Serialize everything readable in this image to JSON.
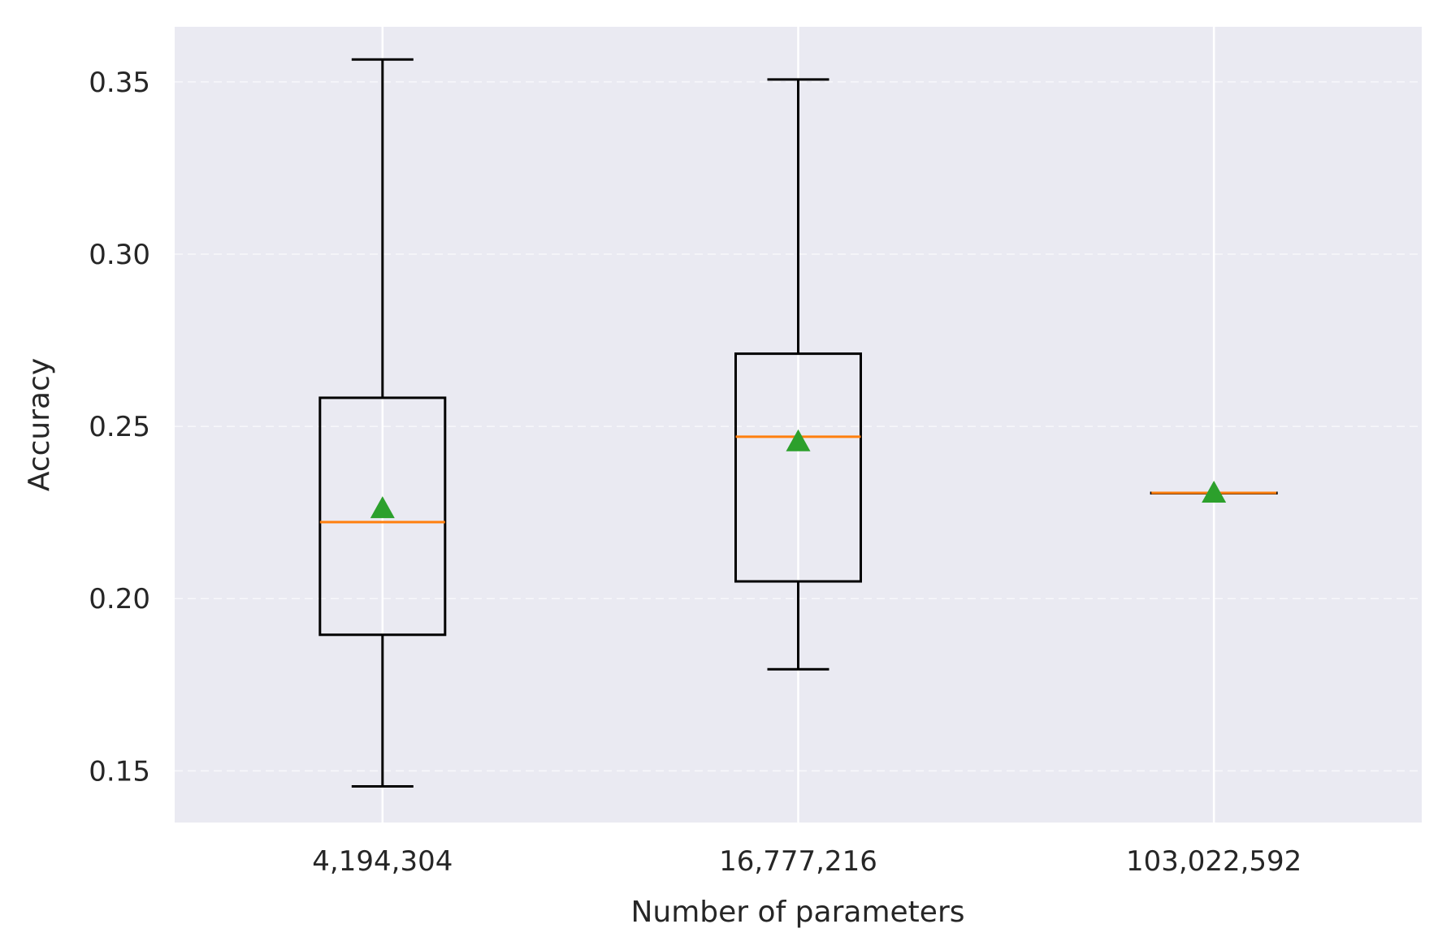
{
  "chart_data": {
    "type": "boxplot",
    "xlabel": "Number of parameters",
    "ylabel": "Accuracy",
    "ylim": [
      0.135,
      0.366
    ],
    "yticks": [
      0.15,
      0.2,
      0.25,
      0.3,
      0.35
    ],
    "ytick_labels": [
      "0.15",
      "0.20",
      "0.25",
      "0.30",
      "0.35"
    ],
    "categories": [
      "4,194,304",
      "16,777,216",
      "103,022,592"
    ],
    "boxes": [
      {
        "label": "4,194,304",
        "whislo": 0.1455,
        "q1": 0.1895,
        "median": 0.2222,
        "q3": 0.2583,
        "whishi": 0.3565,
        "mean": 0.2262
      },
      {
        "label": "16,777,216",
        "whislo": 0.1795,
        "q1": 0.205,
        "median": 0.247,
        "q3": 0.2711,
        "whishi": 0.3507,
        "mean": 0.2456
      },
      {
        "label": "103,022,592",
        "whislo": 0.2307,
        "q1": 0.2307,
        "median": 0.2307,
        "q3": 0.2307,
        "whishi": 0.2307,
        "mean": 0.2307
      }
    ],
    "grid": true,
    "colors": {
      "plot_background": "#eaeaf2",
      "grid": "#ffffff",
      "box": "#000000",
      "median": "#ff7f0e",
      "mean": "#2ca02c",
      "text": "#262626"
    }
  }
}
